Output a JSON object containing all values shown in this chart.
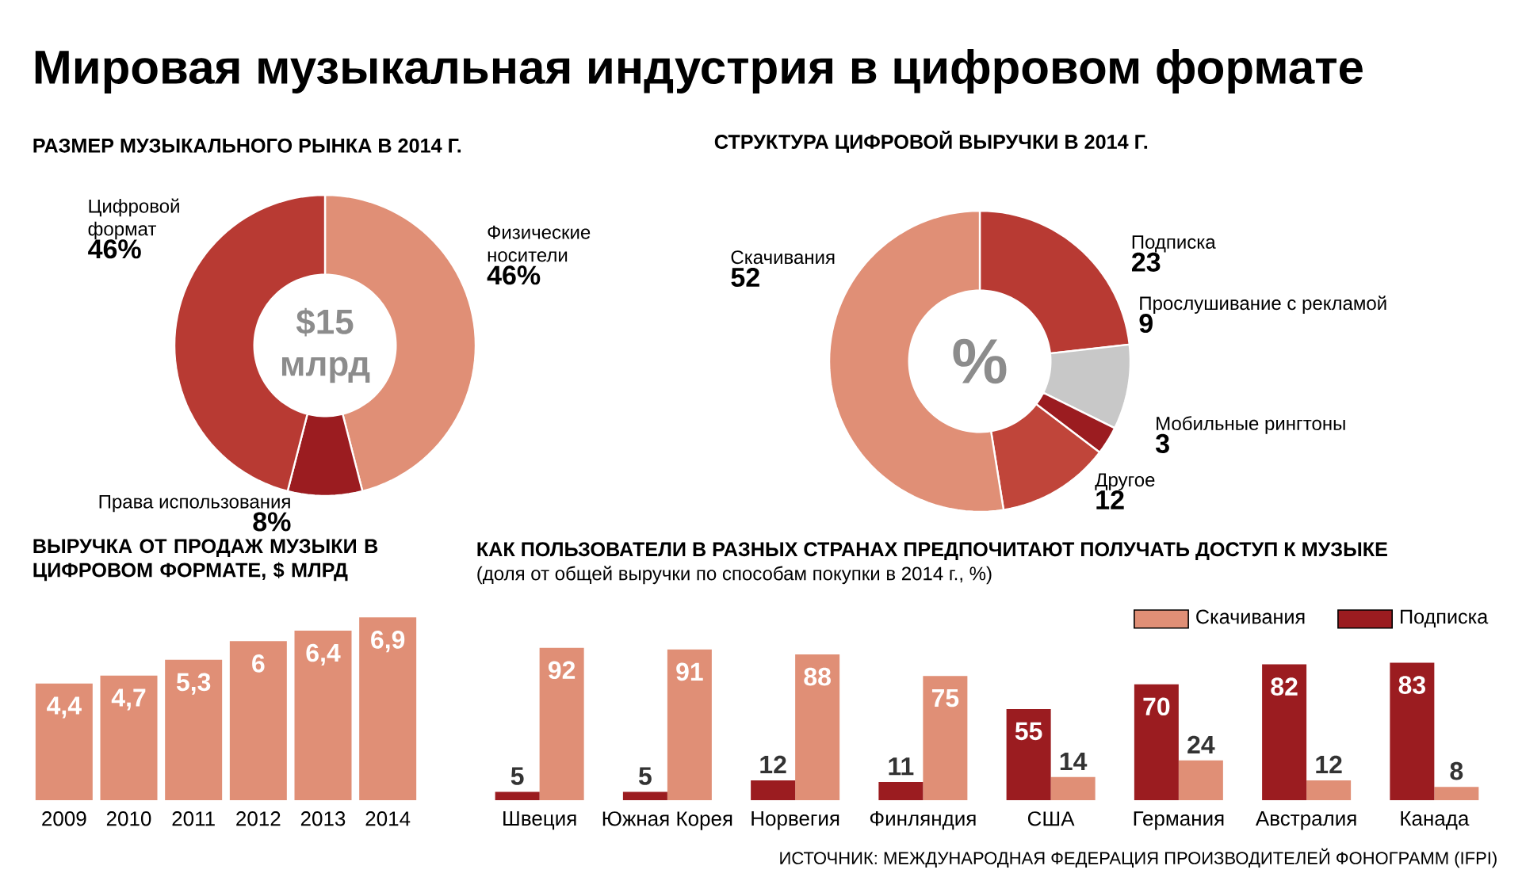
{
  "chart_data": [
    {
      "type": "other",
      "title": "Мировая музыкальная индустрия в цифровом формате"
    },
    {
      "type": "donut",
      "title": "РАЗМЕР МУЗЫКАЛЬНОГО РЫНКА В 2014 Г.",
      "categories": [
        "Физические носители",
        "Права использования",
        "Цифровой формат"
      ],
      "values": [
        46,
        8,
        46
      ],
      "colors": [
        "#e08f76",
        "#9b1c20",
        "#b83a33"
      ],
      "value_labels": [
        "46%",
        "8%",
        "46%"
      ],
      "annotations": [
        "$15 млрд"
      ]
    },
    {
      "type": "donut",
      "title": "СТРУКТУРА ЦИФРОВОЙ ВЫРУЧКИ В 2014 Г.",
      "categories": [
        "Подписка",
        "Прослушивание с рекламой",
        "Мобильные рингтоны",
        "Другое",
        "Скачивания"
      ],
      "values": [
        23,
        9,
        3,
        12,
        52
      ],
      "colors": [
        "#b83a33",
        "#c8c8c8",
        "#9b1c20",
        "#c0453a",
        "#e08f76"
      ],
      "data_labels": true,
      "annotations": [
        "%"
      ]
    },
    {
      "type": "bar",
      "title": "ВЫРУЧКА ОТ ПРОДАЖ МУЗЫКИ В ЦИФРОВОМ ФОРМАТЕ, $ МЛРД",
      "categories": [
        "2009",
        "2010",
        "2011",
        "2012",
        "2013",
        "2014"
      ],
      "values": [
        4.4,
        4.7,
        5.3,
        6,
        6.4,
        6.9
      ],
      "color": "#e08f76",
      "value_labels": [
        "4,4",
        "4,7",
        "5,3",
        "6",
        "6,4",
        "6,9"
      ]
    },
    {
      "type": "bar",
      "title": "КАК ПОЛЬЗОВАТЕЛИ В РАЗНЫХ СТРАНАХ ПРЕДПОЧИТАЮТ ПОЛУЧАТЬ ДОСТУП К МУЗЫКЕ",
      "subtitle": "(доля от общей выручки по способам покупки в 2014 г., %)",
      "categories": [
        "Швеция",
        "Южная Корея",
        "Норвегия",
        "Финляндия",
        "США",
        "Германия",
        "Австралия",
        "Канада"
      ],
      "series": [
        {
          "name": "Скачивания",
          "color": "#e08f76",
          "values": [
            92,
            91,
            88,
            75,
            14,
            24,
            12,
            8
          ]
        },
        {
          "name": "Подписка",
          "color": "#9b1c20",
          "values": [
            5,
            5,
            12,
            11,
            55,
            70,
            82,
            83
          ]
        }
      ],
      "legend": "top right",
      "data_labels": true,
      "annotations": [
        "ИСТОЧНИК: МЕЖДУНАРОДНАЯ ФЕДЕРАЦИЯ ПРОИЗВОДИТЕЛЕЙ ФОНОГРАММ (IFPI)"
      ]
    }
  ]
}
